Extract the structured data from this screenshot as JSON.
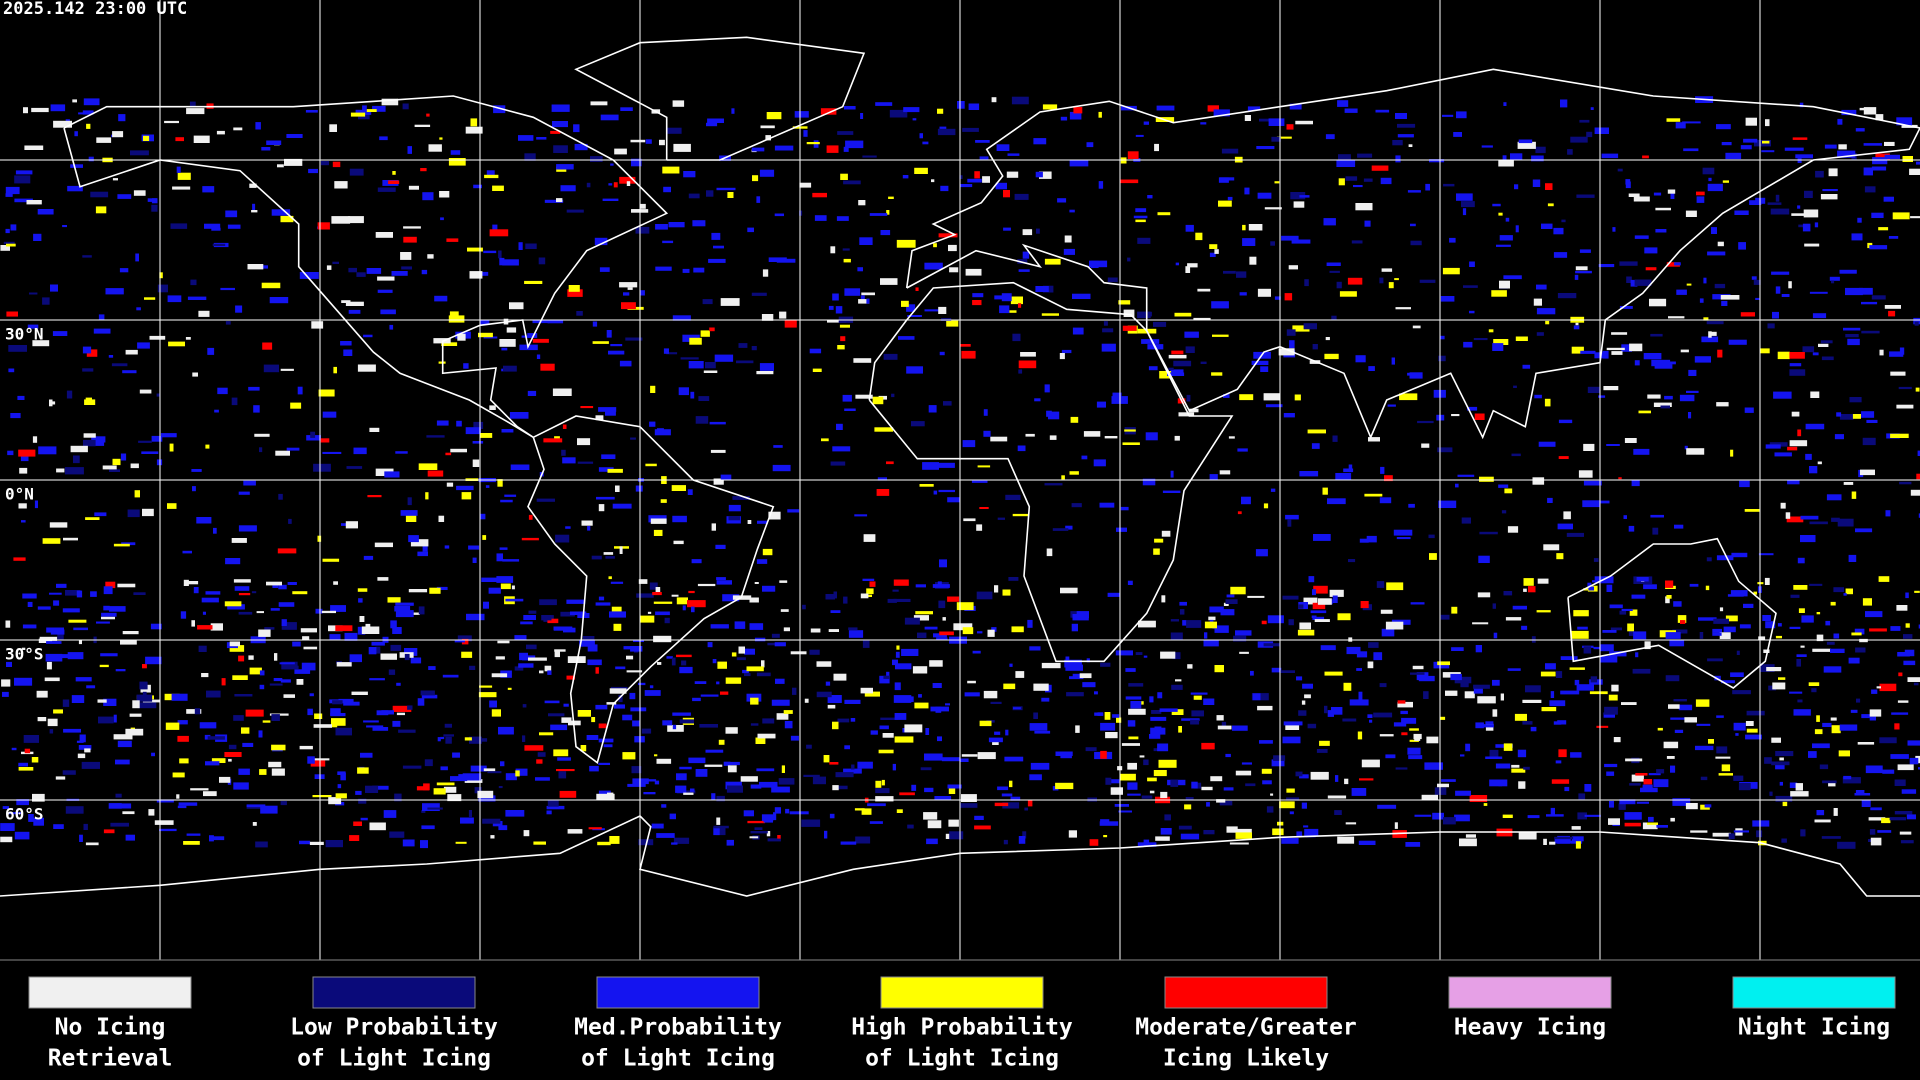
{
  "timestamp": "2025.142 23:00 UTC",
  "latitude_labels": [
    "30°N",
    "0°N",
    "30°S",
    "60°S"
  ],
  "legend": [
    {
      "color": "#f0f0f0",
      "lines": [
        "No Icing",
        "Retrieval"
      ]
    },
    {
      "color": "#0a0a7a",
      "lines": [
        "Low Probability",
        "of Light Icing"
      ]
    },
    {
      "color": "#1414f0",
      "lines": [
        "Med.Probability",
        "of Light Icing"
      ]
    },
    {
      "color": "#ffff00",
      "lines": [
        "High Probability",
        "of Light Icing"
      ]
    },
    {
      "color": "#ff0000",
      "lines": [
        "Moderate/Greater",
        "Icing Likely"
      ]
    },
    {
      "color": "#e6a0e6",
      "lines": [
        "Heavy Icing"
      ]
    },
    {
      "color": "#00f0f0",
      "lines": [
        "Night Icing"
      ]
    }
  ]
}
